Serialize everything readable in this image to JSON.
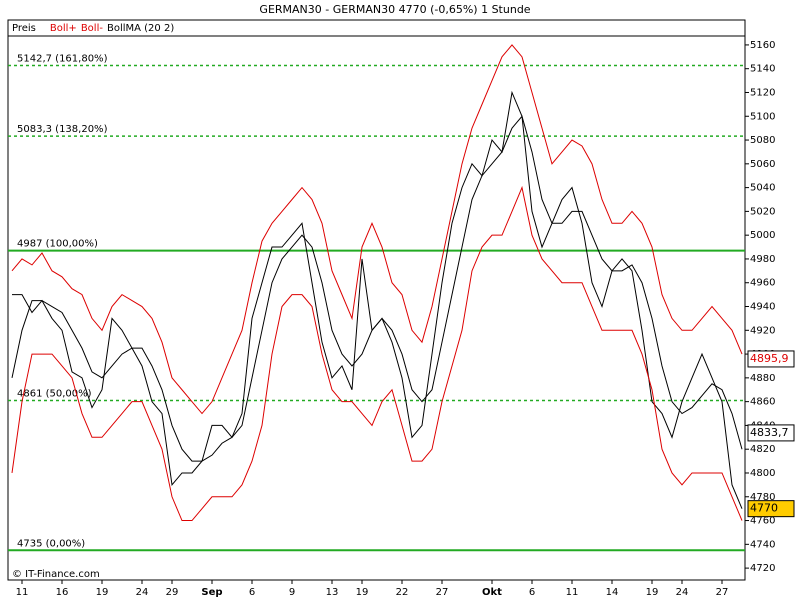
{
  "chart_data": {
    "type": "line",
    "title": "GERMAN30 - GERMAN30    4770 (-0,65%)    1 Stunde",
    "watermark": "© IT-Finance.com",
    "categories": [
      null,
      "11",
      null,
      null,
      null,
      "16",
      null,
      null,
      null,
      "19",
      null,
      null,
      null,
      "24",
      null,
      null,
      "29",
      null,
      null,
      null,
      "Sep",
      null,
      null,
      null,
      "6",
      null,
      null,
      null,
      "9",
      null,
      null,
      null,
      "13",
      null,
      null,
      "19",
      null,
      null,
      null,
      "22",
      null,
      null,
      null,
      "27",
      null,
      null,
      null,
      null,
      "Okt",
      null,
      null,
      null,
      "6",
      null,
      null,
      null,
      "11",
      null,
      null,
      null,
      "14",
      null,
      null,
      null,
      "19",
      null,
      null,
      "24",
      null,
      null,
      null,
      "27",
      null,
      null
    ],
    "series": [
      {
        "name": "Preis",
        "color": "#000000",
        "width": 1,
        "values": [
          4950,
          4950,
          4935,
          4945,
          4930,
          4920,
          4885,
          4880,
          4855,
          4870,
          4930,
          4920,
          4905,
          4890,
          4860,
          4850,
          4790,
          4800,
          4800,
          4810,
          4840,
          4840,
          4830,
          4850,
          4930,
          4960,
          4990,
          4990,
          5000,
          5010,
          4960,
          4910,
          4880,
          4890,
          4870,
          4980,
          4920,
          4930,
          4910,
          4880,
          4830,
          4840,
          4900,
          4960,
          5010,
          5040,
          5060,
          5050,
          5080,
          5070,
          5120,
          5100,
          5020,
          4990,
          5010,
          5030,
          5040,
          5010,
          4960,
          4940,
          4970,
          4980,
          4970,
          4920,
          4860,
          4850,
          4830,
          4860,
          4880,
          4900,
          4880,
          4860,
          4790,
          4770
        ]
      },
      {
        "name": "Boll+",
        "color": "#dd0000",
        "width": 1,
        "values": [
          4970,
          4980,
          4975,
          4985,
          4970,
          4965,
          4955,
          4950,
          4930,
          4920,
          4940,
          4950,
          4945,
          4940,
          4930,
          4910,
          4880,
          4870,
          4860,
          4850,
          4860,
          4880,
          4900,
          4920,
          4960,
          4995,
          5010,
          5020,
          5030,
          5040,
          5030,
          5010,
          4970,
          4950,
          4930,
          4990,
          5010,
          4990,
          4960,
          4950,
          4920,
          4910,
          4940,
          4980,
          5020,
          5060,
          5090,
          5110,
          5130,
          5150,
          5160,
          5150,
          5120,
          5090,
          5060,
          5070,
          5080,
          5075,
          5060,
          5030,
          5010,
          5010,
          5020,
          5010,
          4990,
          4950,
          4930,
          4920,
          4920,
          4930,
          4940,
          4930,
          4920,
          4900
        ]
      },
      {
        "name": "Boll-",
        "color": "#dd0000",
        "width": 1,
        "values": [
          4800,
          4860,
          4900,
          4900,
          4900,
          4890,
          4880,
          4850,
          4830,
          4830,
          4840,
          4850,
          4860,
          4860,
          4840,
          4820,
          4780,
          4760,
          4760,
          4770,
          4780,
          4780,
          4780,
          4790,
          4810,
          4840,
          4900,
          4940,
          4950,
          4950,
          4940,
          4900,
          4870,
          4860,
          4860,
          4850,
          4840,
          4860,
          4870,
          4840,
          4810,
          4810,
          4820,
          4860,
          4890,
          4920,
          4970,
          4990,
          5000,
          5000,
          5020,
          5040,
          5000,
          4980,
          4970,
          4960,
          4960,
          4960,
          4940,
          4920,
          4920,
          4920,
          4920,
          4900,
          4870,
          4820,
          4800,
          4790,
          4800,
          4800,
          4800,
          4800,
          4780,
          4760
        ]
      },
      {
        "name": "BollMA (20 2)",
        "color": "#000000",
        "width": 1,
        "values": [
          4880,
          4920,
          4945,
          4945,
          4940,
          4935,
          4920,
          4905,
          4885,
          4880,
          4890,
          4900,
          4905,
          4905,
          4890,
          4870,
          4840,
          4820,
          4810,
          4810,
          4815,
          4825,
          4830,
          4840,
          4880,
          4920,
          4960,
          4980,
          4990,
          5000,
          4990,
          4960,
          4920,
          4900,
          4890,
          4900,
          4920,
          4930,
          4920,
          4900,
          4870,
          4860,
          4870,
          4910,
          4950,
          4990,
          5030,
          5050,
          5060,
          5070,
          5090,
          5100,
          5070,
          5030,
          5010,
          5010,
          5020,
          5020,
          5000,
          4980,
          4970,
          4970,
          4975,
          4960,
          4930,
          4890,
          4860,
          4850,
          4855,
          4865,
          4875,
          4870,
          4850,
          4820
        ]
      }
    ],
    "ylim": [
      4710,
      5167.5
    ],
    "yticks": [
      4720,
      4740,
      4760,
      4780,
      4800,
      4820,
      4840,
      4860,
      4880,
      4900,
      4920,
      4940,
      4960,
      4980,
      5000,
      5020,
      5040,
      5060,
      5080,
      5100,
      5120,
      5140,
      5160
    ],
    "levels": [
      {
        "value": 5142.7,
        "label": "5142,7 (161,80%)",
        "color": "#22aa22",
        "dashed": true
      },
      {
        "value": 5083.3,
        "label": "5083,3 (138,20%)",
        "color": "#22aa22",
        "dashed": true
      },
      {
        "value": 4987,
        "label": "4987 (100,00%)",
        "color": "#22aa22",
        "dashed": false
      },
      {
        "value": 4861,
        "label": "4861 (50,00%)",
        "color": "#22aa22",
        "dashed": true
      },
      {
        "value": 4735,
        "label": "4735 (0,00%)",
        "color": "#22aa22",
        "dashed": false
      }
    ],
    "price_labels": [
      {
        "value": 4895.9,
        "label": "4895,9",
        "color": "#dd0000",
        "background": "#ffffff"
      },
      {
        "value": 4833.7,
        "label": "4833,7",
        "color": "#000000",
        "background": "#ffffff"
      },
      {
        "value": 4770,
        "label": "4770",
        "color": "#000000",
        "background": "#ffcc00"
      }
    ]
  }
}
